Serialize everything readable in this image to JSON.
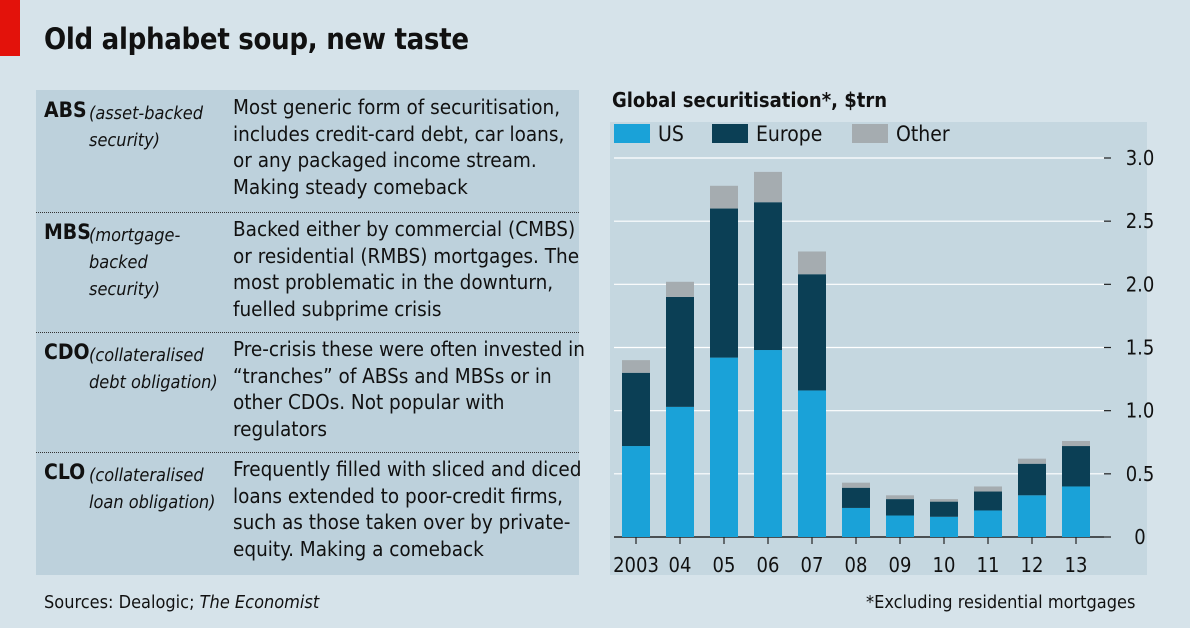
{
  "title": "Old alphabet soup, new taste",
  "table": [
    {
      "abbr": "ABS",
      "full": "(asset-backed security)",
      "desc": "Most generic form of securitisation, includes credit-card debt, car loans, or any packaged income stream. Making steady comeback"
    },
    {
      "abbr": "MBS",
      "full": "(mortgage-backed security)",
      "desc": "Backed either by commercial (CMBS) or residential (RMBS) mortgages. The most problematic in the downturn, fuelled subprime crisis"
    },
    {
      "abbr": "CDO",
      "full": "(collateralised debt obligation)",
      "desc": "Pre-crisis these were often invested in “tranches” of ABSs and MBSs or in other CDOs. Not popular with regulators"
    },
    {
      "abbr": "CLO",
      "full": "(collateralised loan obligation)",
      "desc": "Frequently filled with sliced and diced loans extended to poor-credit firms, such as those taken over by private-equity. Making a comeback"
    }
  ],
  "footer": {
    "sources_prefix": "Sources: Dealogic; ",
    "sources_italic": "The Economist",
    "note": "*Excluding residential mortgages"
  },
  "chart_data": {
    "type": "bar",
    "stacked": true,
    "title": "Global securitisation*, $trn",
    "categories": [
      "2003",
      "04",
      "05",
      "06",
      "07",
      "08",
      "09",
      "10",
      "11",
      "12",
      "13"
    ],
    "series": [
      {
        "name": "US",
        "color": "#1aa2d8",
        "values": [
          0.72,
          1.03,
          1.42,
          1.48,
          1.16,
          0.23,
          0.17,
          0.16,
          0.21,
          0.33,
          0.4
        ]
      },
      {
        "name": "Europe",
        "color": "#0b3f55",
        "values": [
          0.58,
          0.87,
          1.18,
          1.17,
          0.92,
          0.16,
          0.13,
          0.12,
          0.15,
          0.25,
          0.32
        ]
      },
      {
        "name": "Other",
        "color": "#a5acb0",
        "values": [
          0.1,
          0.12,
          0.18,
          0.24,
          0.18,
          0.04,
          0.03,
          0.02,
          0.04,
          0.04,
          0.04
        ]
      }
    ],
    "ylim": [
      0,
      3.0
    ],
    "yticks": [
      0,
      0.5,
      1.0,
      1.5,
      2.0,
      2.5,
      3.0
    ],
    "ytick_labels": [
      "0",
      "0.5",
      "1.0",
      "1.5",
      "2.0",
      "2.5",
      "3.0"
    ],
    "axis_side": "right",
    "grid": true,
    "legend": "top-left"
  }
}
